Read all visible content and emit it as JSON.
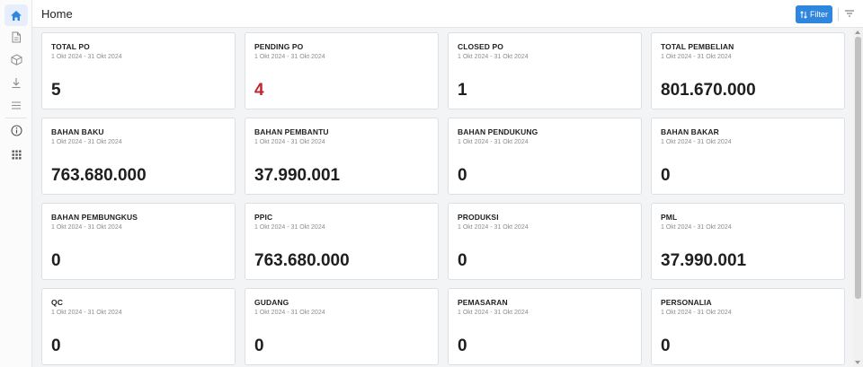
{
  "header": {
    "title": "Home",
    "filter_label": "Filter"
  },
  "sidebar": {
    "items": [
      {
        "icon": "home-icon",
        "active": true
      },
      {
        "icon": "document-icon",
        "active": false
      },
      {
        "icon": "box-icon",
        "active": false
      },
      {
        "icon": "download-icon",
        "active": false
      },
      {
        "icon": "menu-icon",
        "active": false
      },
      {
        "icon": "info-icon",
        "active": false
      },
      {
        "icon": "apps-grid-icon",
        "active": false
      }
    ]
  },
  "colors": {
    "accent": "#2f86de",
    "pending_value": "#c0262d"
  },
  "cards": [
    {
      "label": "TOTAL PO",
      "date": "1 Okt 2024 - 31 Okt 2024",
      "value": "5"
    },
    {
      "label": "PENDING PO",
      "date": "1 Okt 2024 - 31 Okt 2024",
      "value": "4",
      "highlight": true
    },
    {
      "label": "CLOSED PO",
      "date": "1 Okt 2024 - 31 Okt 2024",
      "value": "1"
    },
    {
      "label": "TOTAL PEMBELIAN",
      "date": "1 Okt 2024 - 31 Okt 2024",
      "value": "801.670.000"
    },
    {
      "label": "BAHAN BAKU",
      "date": "1 Okt 2024 - 31 Okt 2024",
      "value": "763.680.000"
    },
    {
      "label": "BAHAN PEMBANTU",
      "date": "1 Okt 2024 - 31 Okt 2024",
      "value": "37.990.001"
    },
    {
      "label": "BAHAN PENDUKUNG",
      "date": "1 Okt 2024 - 31 Okt 2024",
      "value": "0"
    },
    {
      "label": "BAHAN BAKAR",
      "date": "1 Okt 2024 - 31 Okt 2024",
      "value": "0"
    },
    {
      "label": "BAHAN PEMBUNGKUS",
      "date": "1 Okt 2024 - 31 Okt 2024",
      "value": "0"
    },
    {
      "label": "PPIC",
      "date": "1 Okt 2024 - 31 Okt 2024",
      "value": "763.680.000"
    },
    {
      "label": "PRODUKSI",
      "date": "1 Okt 2024 - 31 Okt 2024",
      "value": "0"
    },
    {
      "label": "PML",
      "date": "1 Okt 2024 - 31 Okt 2024",
      "value": "37.990.001"
    },
    {
      "label": "QC",
      "date": "1 Okt 2024 - 31 Okt 2024",
      "value": "0"
    },
    {
      "label": "GUDANG",
      "date": "1 Okt 2024 - 31 Okt 2024",
      "value": "0"
    },
    {
      "label": "PEMASARAN",
      "date": "1 Okt 2024 - 31 Okt 2024",
      "value": "0"
    },
    {
      "label": "PERSONALIA",
      "date": "1 Okt 2024 - 31 Okt 2024",
      "value": "0"
    }
  ]
}
